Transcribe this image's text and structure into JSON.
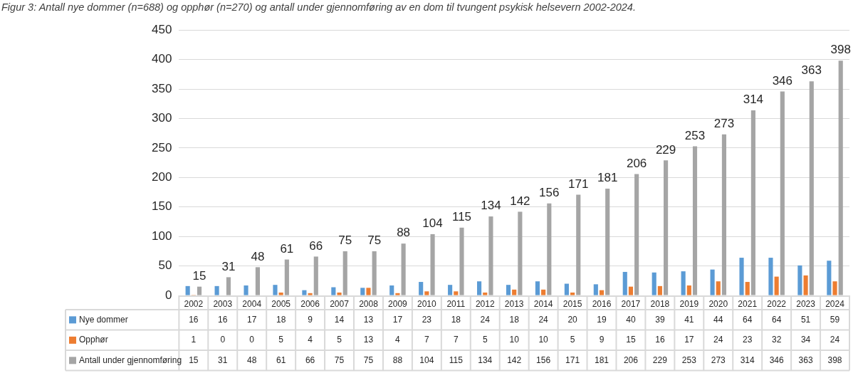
{
  "chart_data": {
    "type": "bar",
    "title": "Figur 3: Antall nye dommer (n=688) og opphør (n=270) og antall under gjennomføring av en dom til tvungent psykisk helsevern 2002-2024.",
    "categories": [
      "2002",
      "2003",
      "2004",
      "2005",
      "2006",
      "2007",
      "2008",
      "2009",
      "2010",
      "2011",
      "2012",
      "2013",
      "2014",
      "2015",
      "2016",
      "2017",
      "2018",
      "2019",
      "2020",
      "2021",
      "2022",
      "2023",
      "2024"
    ],
    "series": [
      {
        "name": "Nye dommer",
        "color": "#5b9bd5",
        "values": [
          16,
          16,
          17,
          18,
          9,
          14,
          13,
          17,
          23,
          18,
          24,
          18,
          24,
          20,
          19,
          40,
          39,
          41,
          44,
          64,
          64,
          51,
          59
        ]
      },
      {
        "name": "Opphør",
        "color": "#ed7d31",
        "values": [
          1,
          0,
          0,
          5,
          4,
          5,
          13,
          4,
          7,
          7,
          5,
          10,
          10,
          5,
          9,
          15,
          16,
          17,
          24,
          23,
          32,
          34,
          24
        ]
      },
      {
        "name": "Antall under gjennomføring",
        "color": "#a5a5a5",
        "values": [
          15,
          31,
          48,
          61,
          66,
          75,
          75,
          88,
          104,
          115,
          134,
          142,
          156,
          171,
          181,
          206,
          229,
          253,
          273,
          314,
          346,
          363,
          398
        ]
      }
    ],
    "annotations": [
      "15",
      "31",
      "48",
      "61",
      "66",
      "75",
      "75",
      "88",
      "104",
      "115",
      "134",
      "142",
      "156",
      "171",
      "181",
      "206",
      "229",
      "253",
      "273",
      "314",
      "346",
      "363",
      "398"
    ],
    "ylim": [
      0,
      450
    ],
    "yticks": [
      0,
      50,
      100,
      150,
      200,
      250,
      300,
      350,
      400,
      450
    ],
    "grid": "y",
    "legend": "bottom",
    "data_labels": true
  }
}
